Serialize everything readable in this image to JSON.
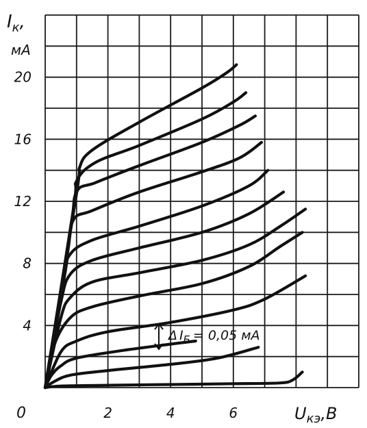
{
  "chart_data": {
    "type": "line",
    "title": "",
    "ylabel": "I",
    "ylabel_sub": "к",
    "ylabel_comma": ",",
    "yunit": "мА",
    "xlabel": "U",
    "xlabel_sub": "кэ",
    "xunit": ",В",
    "origin_label": "0",
    "xlim": [
      0,
      10
    ],
    "ylim": [
      0,
      24
    ],
    "x_ticks": [
      2,
      4,
      6
    ],
    "y_ticks": [
      4,
      8,
      12,
      16,
      20
    ],
    "grid": true,
    "annotation": {
      "symbol": "Δ",
      "label": "I",
      "sub": "Б",
      "value": "= 0,05 мА",
      "x": 3.6,
      "y": 3.5
    },
    "series": [
      {
        "values": [
          [
            0,
            0
          ],
          [
            0.5,
            0.1
          ],
          [
            2,
            0.15
          ],
          [
            4,
            0.2
          ],
          [
            6,
            0.25
          ],
          [
            7.5,
            0.3
          ],
          [
            7.9,
            0.5
          ],
          [
            8.2,
            1.0
          ]
        ]
      },
      {
        "values": [
          [
            0,
            0
          ],
          [
            0.3,
            0.4
          ],
          [
            0.8,
            0.8
          ],
          [
            2,
            1.1
          ],
          [
            4,
            1.5
          ],
          [
            5.5,
            1.9
          ],
          [
            6.8,
            2.6
          ]
        ]
      },
      {
        "values": [
          [
            0,
            0
          ],
          [
            0.2,
            0.8
          ],
          [
            0.5,
            1.4
          ],
          [
            1,
            1.9
          ],
          [
            2.5,
            2.4
          ],
          [
            4,
            2.8
          ],
          [
            4.8,
            3.0
          ]
        ]
      },
      {
        "values": [
          [
            0,
            0
          ],
          [
            0.5,
            2.3
          ],
          [
            1,
            3.0
          ],
          [
            2,
            3.6
          ],
          [
            4,
            4.2
          ],
          [
            6,
            5.0
          ],
          [
            7,
            5.7
          ],
          [
            8.3,
            7.2
          ]
        ]
      },
      {
        "values": [
          [
            0,
            0
          ],
          [
            0.3,
            2.8
          ],
          [
            0.8,
            4.5
          ],
          [
            1.5,
            5.2
          ],
          [
            3,
            5.9
          ],
          [
            5,
            6.7
          ],
          [
            6.5,
            7.8
          ],
          [
            7.5,
            9.1
          ],
          [
            8.2,
            10.0
          ]
        ]
      },
      {
        "values": [
          [
            0,
            0
          ],
          [
            0.5,
            4.5
          ],
          [
            0.8,
            5.8
          ],
          [
            1.5,
            6.8
          ],
          [
            3,
            7.4
          ],
          [
            5,
            8.2
          ],
          [
            6.5,
            9.2
          ],
          [
            7.5,
            10.4
          ],
          [
            8.3,
            11.5
          ]
        ]
      },
      {
        "values": [
          [
            0,
            0
          ],
          [
            0.5,
            5.5
          ],
          [
            0.8,
            7.3
          ],
          [
            1.5,
            8.2
          ],
          [
            3,
            9.0
          ],
          [
            5,
            10.0
          ],
          [
            6.5,
            11.2
          ],
          [
            7.6,
            12.6
          ]
        ]
      },
      {
        "values": [
          [
            0,
            0
          ],
          [
            0.6,
            7.0
          ],
          [
            0.8,
            8.6
          ],
          [
            1.5,
            9.5
          ],
          [
            3,
            10.4
          ],
          [
            5,
            11.7
          ],
          [
            6.5,
            13.0
          ],
          [
            7.1,
            14.0
          ]
        ]
      },
      {
        "values": [
          [
            0,
            0
          ],
          [
            0.7,
            8.5
          ],
          [
            0.9,
            10.8
          ],
          [
            1.5,
            11.4
          ],
          [
            3,
            12.6
          ],
          [
            5,
            13.9
          ],
          [
            6.2,
            14.8
          ],
          [
            6.9,
            15.8
          ]
        ]
      },
      {
        "values": [
          [
            0,
            0
          ],
          [
            0.8,
            10.0
          ],
          [
            1.0,
            12.6
          ],
          [
            1.6,
            13.2
          ],
          [
            3,
            14.3
          ],
          [
            5,
            15.8
          ],
          [
            6.2,
            16.9
          ],
          [
            6.7,
            17.5
          ]
        ]
      },
      {
        "values": [
          [
            0,
            0
          ],
          [
            0.9,
            11.5
          ],
          [
            1.0,
            13.3
          ],
          [
            1.6,
            14.5
          ],
          [
            3,
            15.6
          ],
          [
            5,
            17.3
          ],
          [
            6,
            18.4
          ],
          [
            6.4,
            19.0
          ]
        ]
      },
      {
        "values": [
          [
            0,
            0
          ],
          [
            1.0,
            12.5
          ],
          [
            1.1,
            14.2
          ],
          [
            1.5,
            15.3
          ],
          [
            3,
            17.1
          ],
          [
            5,
            19.3
          ],
          [
            5.8,
            20.3
          ],
          [
            6.1,
            20.8
          ]
        ]
      }
    ]
  }
}
